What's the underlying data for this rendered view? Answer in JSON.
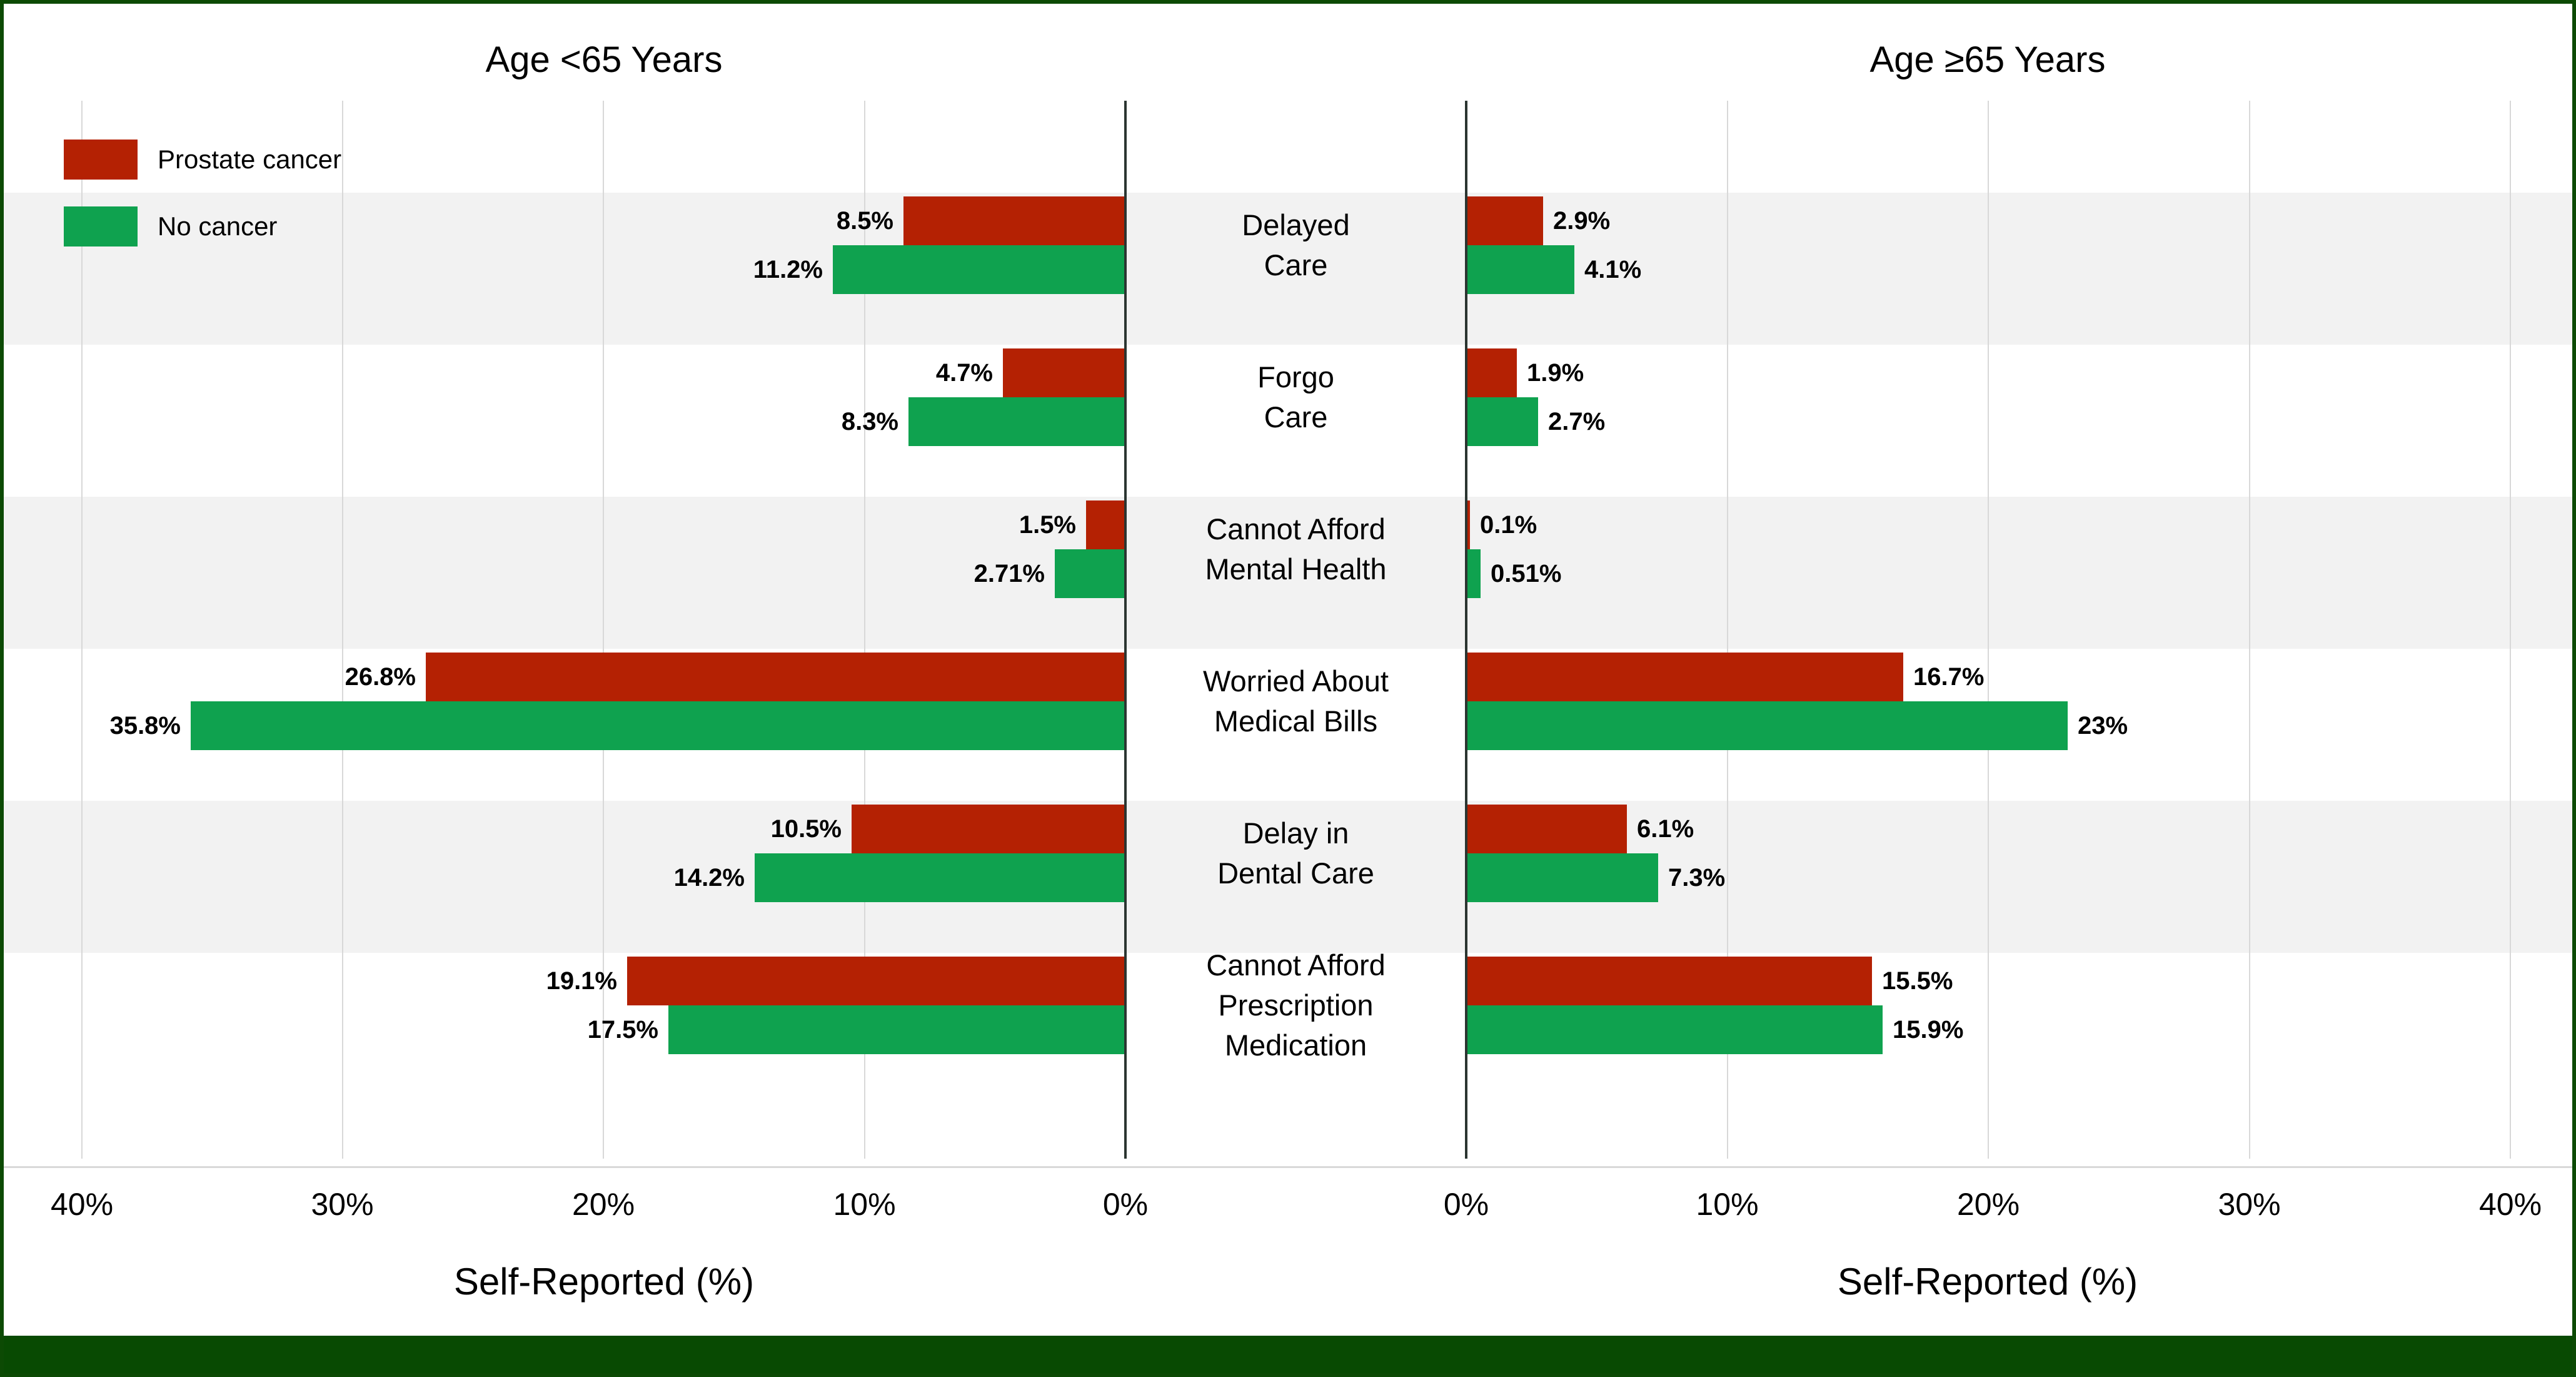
{
  "figure": {
    "border_color": "#0c4a04",
    "bottom_strip_color": "#084a02",
    "band_color": "#f2f2f2",
    "background": "#ffffff"
  },
  "chart_data": {
    "type": "bar",
    "variant": "diverging-grouped-horizontal",
    "grid": true,
    "xlim_percent": [
      0,
      40
    ],
    "tick_step_percent": 10,
    "panels": [
      {
        "side": "left",
        "title": "Age <65 Years",
        "xlabel": "Self-Reported (%)",
        "ticks": [
          "40%",
          "30%",
          "20%",
          "10%",
          "0%"
        ]
      },
      {
        "side": "right",
        "title": "Age ≥65 Years",
        "xlabel": "Self-Reported (%)",
        "ticks": [
          "0%",
          "10%",
          "20%",
          "30%",
          "40%"
        ]
      }
    ],
    "series": [
      {
        "name": "Prostate cancer",
        "color": "#b42103"
      },
      {
        "name": "No cancer",
        "color": "#0fa24f"
      }
    ],
    "categories": [
      {
        "label": "Delayed Care",
        "label_lines": [
          "Delayed",
          "Care"
        ],
        "values": {
          "age_lt_65": {
            "prostate_cancer": 8.5,
            "no_cancer": 11.2
          },
          "age_ge_65": {
            "prostate_cancer": 2.9,
            "no_cancer": 4.1
          }
        },
        "display": {
          "age_lt_65": [
            "8.5%",
            "11.2%"
          ],
          "age_ge_65": [
            "2.9%",
            "4.1%"
          ]
        }
      },
      {
        "label": "Forgo Care",
        "label_lines": [
          "Forgo",
          "Care"
        ],
        "values": {
          "age_lt_65": {
            "prostate_cancer": 4.7,
            "no_cancer": 8.3
          },
          "age_ge_65": {
            "prostate_cancer": 1.9,
            "no_cancer": 2.7
          }
        },
        "display": {
          "age_lt_65": [
            "4.7%",
            "8.3%"
          ],
          "age_ge_65": [
            "1.9%",
            "2.7%"
          ]
        }
      },
      {
        "label": "Cannot Afford Mental Health",
        "label_lines": [
          "Cannot Afford",
          "Mental Health"
        ],
        "values": {
          "age_lt_65": {
            "prostate_cancer": 1.5,
            "no_cancer": 2.71
          },
          "age_ge_65": {
            "prostate_cancer": 0.1,
            "no_cancer": 0.51
          }
        },
        "display": {
          "age_lt_65": [
            "1.5%",
            "2.71%"
          ],
          "age_ge_65": [
            "0.1%",
            "0.51%"
          ]
        }
      },
      {
        "label": "Worried About Medical Bills",
        "label_lines": [
          "Worried About",
          "Medical Bills"
        ],
        "values": {
          "age_lt_65": {
            "prostate_cancer": 26.8,
            "no_cancer": 35.8
          },
          "age_ge_65": {
            "prostate_cancer": 16.7,
            "no_cancer": 23
          }
        },
        "display": {
          "age_lt_65": [
            "26.8%",
            "35.8%"
          ],
          "age_ge_65": [
            "16.7%",
            "23%"
          ]
        }
      },
      {
        "label": "Delay in Dental Care",
        "label_lines": [
          "Delay in",
          "Dental Care"
        ],
        "values": {
          "age_lt_65": {
            "prostate_cancer": 10.5,
            "no_cancer": 14.2
          },
          "age_ge_65": {
            "prostate_cancer": 6.1,
            "no_cancer": 7.3
          }
        },
        "display": {
          "age_lt_65": [
            "10.5%",
            "14.2%"
          ],
          "age_ge_65": [
            "6.1%",
            "7.3%"
          ]
        }
      },
      {
        "label": "Cannot Afford Prescription Medication",
        "label_lines": [
          "Cannot Afford",
          "Prescription",
          "Medication"
        ],
        "values": {
          "age_lt_65": {
            "prostate_cancer": 19.1,
            "no_cancer": 17.5
          },
          "age_ge_65": {
            "prostate_cancer": 15.5,
            "no_cancer": 15.9
          }
        },
        "display": {
          "age_lt_65": [
            "19.1%",
            "17.5%"
          ],
          "age_ge_65": [
            "15.5%",
            "15.9%"
          ]
        }
      }
    ]
  }
}
